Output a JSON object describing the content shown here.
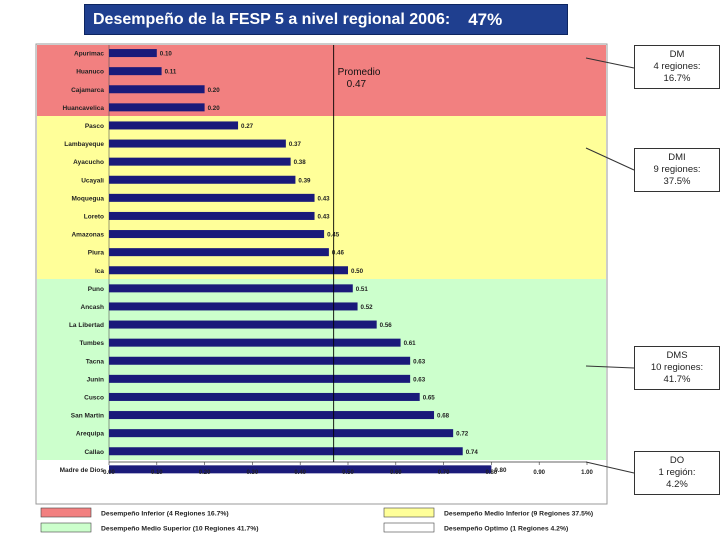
{
  "header": {
    "title": "Desempeño de la FESP 5 a nivel regional 2006:",
    "value": "47%"
  },
  "colors": {
    "band_dm": "#f28080",
    "band_dmi": "#ffff99",
    "band_dms": "#ccffcc",
    "band_do": "#ffffff",
    "bar": "#1a1a7a",
    "title_bg": "#1f3f8f"
  },
  "chart_data": {
    "type": "bar",
    "orientation": "horizontal",
    "categories": [
      "Apurimac",
      "Huanuco",
      "Cajamarca",
      "Huancavelica",
      "Pasco",
      "Lambayeque",
      "Ayacucho",
      "Ucayali",
      "Moquegua",
      "Loreto",
      "Amazonas",
      "Piura",
      "Ica",
      "Puno",
      "Ancash",
      "La Libertad",
      "Tumbes",
      "Tacna",
      "Junin",
      "Cusco",
      "San Martin",
      "Arequipa",
      "Callao",
      "Madre de Dios"
    ],
    "values": [
      0.1,
      0.11,
      0.2,
      0.2,
      0.27,
      0.37,
      0.38,
      0.39,
      0.43,
      0.43,
      0.45,
      0.46,
      0.5,
      0.51,
      0.52,
      0.56,
      0.61,
      0.63,
      0.63,
      0.65,
      0.68,
      0.72,
      0.74,
      0.8
    ],
    "value_labels": [
      "0.10",
      "0.11",
      "0.20",
      "0.20",
      "0.27",
      "0.37",
      "0.38",
      "0.39",
      "0.43",
      "0.43",
      "0.45",
      "0.46",
      "0.50",
      "0.51",
      "0.52",
      "0.56",
      "0.61",
      "0.63",
      "0.63",
      "0.65",
      "0.68",
      "0.72",
      "0.74",
      "0.80"
    ],
    "xlim": [
      0,
      1.0
    ],
    "xticks": [
      "0.00",
      "0.10",
      "0.20",
      "0.30",
      "0.40",
      "0.50",
      "0.60",
      "0.70",
      "0.80",
      "0.90",
      "1.00"
    ],
    "average": {
      "value": 0.47,
      "label": "Promedio",
      "value_label": "0.47"
    },
    "bands": [
      {
        "key": "band_dm",
        "from_index": 0,
        "to_index": 3
      },
      {
        "key": "band_dmi",
        "from_index": 4,
        "to_index": 12
      },
      {
        "key": "band_dms",
        "from_index": 13,
        "to_index": 22
      },
      {
        "key": "band_do",
        "from_index": 23,
        "to_index": 23
      }
    ],
    "legend": [
      {
        "key": "band_dm",
        "label": "Desempeño Inferior (4  Regiones  16.7%)"
      },
      {
        "key": "band_dmi",
        "label": "Desempeño Medio Inferior (9 Regiones  37.5%)"
      },
      {
        "key": "band_dms",
        "label": "Desempeño Medio Superior (10 Regiones  41.7%)"
      },
      {
        "key": "band_do",
        "label": "Desempeño Optimo (1 Regiones 4.2%)"
      }
    ]
  },
  "callouts": [
    {
      "code": "DM",
      "count": "4 regiones:",
      "pct": "16.7%"
    },
    {
      "code": "DMI",
      "count": "9 regiones:",
      "pct": "37.5%"
    },
    {
      "code": "DMS",
      "count": "10 regiones:",
      "pct": "41.7%"
    },
    {
      "code": "DO",
      "count": "1 región:",
      "pct": "4.2%"
    }
  ]
}
